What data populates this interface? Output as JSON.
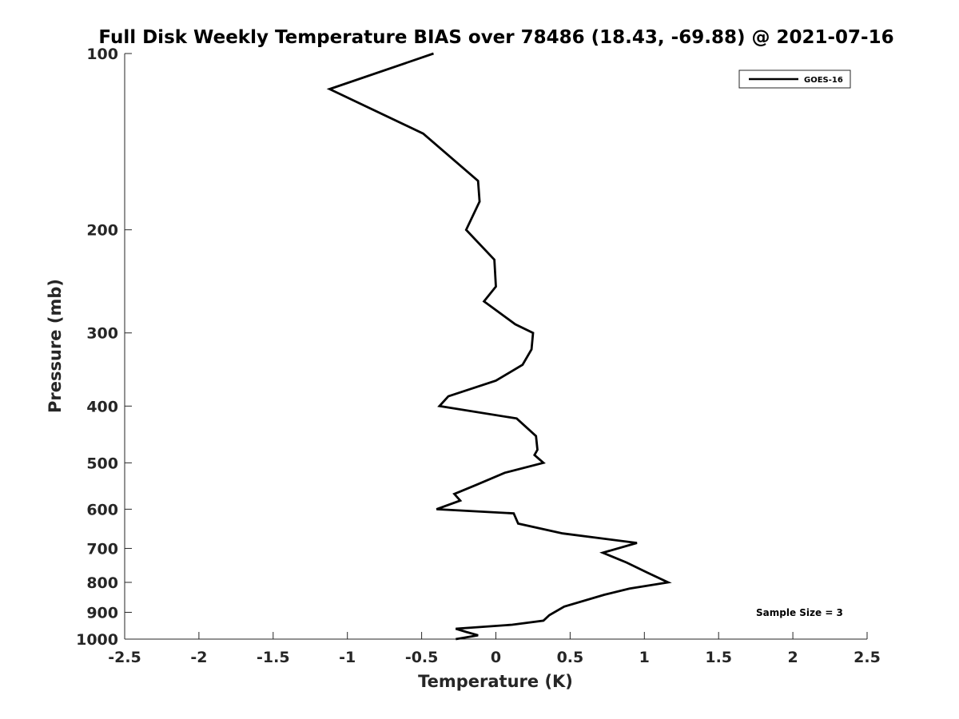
{
  "chart_data": {
    "type": "line",
    "title": "Full Disk Weekly Temperature BIAS over 78486 (18.43, -69.88) @ 2021-07-16",
    "xlabel": "Temperature (K)",
    "ylabel": "Pressure (mb)",
    "xlim": [
      -2.5,
      2.5
    ],
    "ylim": [
      100,
      1000
    ],
    "y_scale": "log",
    "y_reversed": true,
    "grid": false,
    "legend_position": "top-right",
    "x_ticks": [
      "-2.5",
      "-2",
      "-1.5",
      "-1",
      "-0.5",
      "0",
      "0.5",
      "1",
      "1.5",
      "2",
      "2.5"
    ],
    "y_ticks": [
      "100",
      "200",
      "300",
      "400",
      "500",
      "600",
      "700",
      "800",
      "900",
      "1000"
    ],
    "annotation": "Sample Size = 3",
    "line_color": "#000000",
    "series": [
      {
        "name": "GOES-16",
        "points": [
          {
            "x": -0.42,
            "y": 100
          },
          {
            "x": -1.12,
            "y": 115
          },
          {
            "x": -0.49,
            "y": 137
          },
          {
            "x": -0.12,
            "y": 165
          },
          {
            "x": -0.11,
            "y": 179
          },
          {
            "x": -0.2,
            "y": 200
          },
          {
            "x": -0.01,
            "y": 225
          },
          {
            "x": 0.0,
            "y": 250
          },
          {
            "x": -0.08,
            "y": 265
          },
          {
            "x": 0.13,
            "y": 290
          },
          {
            "x": 0.25,
            "y": 300
          },
          {
            "x": 0.24,
            "y": 320
          },
          {
            "x": 0.18,
            "y": 340
          },
          {
            "x": 0.0,
            "y": 362
          },
          {
            "x": -0.32,
            "y": 385
          },
          {
            "x": -0.38,
            "y": 400
          },
          {
            "x": 0.14,
            "y": 420
          },
          {
            "x": 0.27,
            "y": 450
          },
          {
            "x": 0.28,
            "y": 475
          },
          {
            "x": 0.26,
            "y": 485
          },
          {
            "x": 0.32,
            "y": 500
          },
          {
            "x": 0.06,
            "y": 520
          },
          {
            "x": -0.13,
            "y": 545
          },
          {
            "x": -0.28,
            "y": 565
          },
          {
            "x": -0.24,
            "y": 580
          },
          {
            "x": -0.4,
            "y": 600
          },
          {
            "x": 0.12,
            "y": 610
          },
          {
            "x": 0.15,
            "y": 635
          },
          {
            "x": 0.45,
            "y": 660
          },
          {
            "x": 0.95,
            "y": 685
          },
          {
            "x": 0.72,
            "y": 712
          },
          {
            "x": 0.88,
            "y": 740
          },
          {
            "x": 1.02,
            "y": 770
          },
          {
            "x": 1.16,
            "y": 800
          },
          {
            "x": 0.9,
            "y": 820
          },
          {
            "x": 0.73,
            "y": 840
          },
          {
            "x": 0.46,
            "y": 880
          },
          {
            "x": 0.36,
            "y": 910
          },
          {
            "x": 0.32,
            "y": 930
          },
          {
            "x": 0.11,
            "y": 945
          },
          {
            "x": -0.27,
            "y": 960
          },
          {
            "x": -0.2,
            "y": 972
          },
          {
            "x": -0.12,
            "y": 985
          },
          {
            "x": -0.27,
            "y": 1000
          }
        ]
      }
    ]
  }
}
